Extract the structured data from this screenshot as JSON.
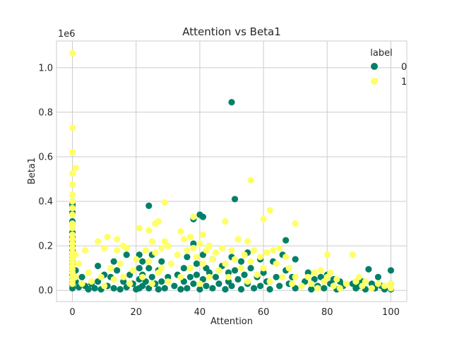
{
  "chart_data": {
    "type": "scatter",
    "title": "Attention vs Beta1",
    "xlabel": "Attention",
    "ylabel": "Beta1",
    "y_offset_text": "1e6",
    "xlim": [
      -5,
      105
    ],
    "ylim": [
      -50000,
      1120000
    ],
    "x_ticks": [
      0,
      20,
      40,
      60,
      80,
      100
    ],
    "x_tick_labels": [
      "0",
      "20",
      "40",
      "60",
      "80",
      "100"
    ],
    "y_ticks": [
      0,
      200000,
      400000,
      600000,
      800000,
      1000000
    ],
    "y_tick_labels": [
      "0.0",
      "0.2",
      "0.4",
      "0.6",
      "0.8",
      "1.0"
    ],
    "grid": true,
    "legend": {
      "title": "label",
      "placement": "top-right"
    },
    "series": [
      {
        "name": "0",
        "color": "#008066",
        "points": [
          [
            0,
            390000
          ],
          [
            0,
            380000
          ],
          [
            0,
            350000
          ],
          [
            0,
            310000
          ],
          [
            0,
            300000
          ],
          [
            0,
            260000
          ],
          [
            0,
            240000
          ],
          [
            0,
            220000
          ],
          [
            0,
            200000
          ],
          [
            0,
            180000
          ],
          [
            0,
            165000
          ],
          [
            0,
            150000
          ],
          [
            0,
            135000
          ],
          [
            0,
            120000
          ],
          [
            0,
            100000
          ],
          [
            0,
            85000
          ],
          [
            0,
            70000
          ],
          [
            0,
            55000
          ],
          [
            0,
            40000
          ],
          [
            0,
            25000
          ],
          [
            0,
            10000
          ],
          [
            1,
            90000
          ],
          [
            1,
            40000
          ],
          [
            2,
            15000
          ],
          [
            3,
            60000
          ],
          [
            4,
            20000
          ],
          [
            5,
            5000
          ],
          [
            6,
            30000
          ],
          [
            7,
            10000
          ],
          [
            8,
            110000
          ],
          [
            8,
            40000
          ],
          [
            9,
            5000
          ],
          [
            10,
            70000
          ],
          [
            11,
            20000
          ],
          [
            12,
            60000
          ],
          [
            13,
            130000
          ],
          [
            13,
            10000
          ],
          [
            14,
            90000
          ],
          [
            15,
            5000
          ],
          [
            16,
            40000
          ],
          [
            17,
            160000
          ],
          [
            17,
            15000
          ],
          [
            18,
            70000
          ],
          [
            19,
            30000
          ],
          [
            20,
            5000
          ],
          [
            21,
            160000
          ],
          [
            21,
            100000
          ],
          [
            21,
            50000
          ],
          [
            21,
            10000
          ],
          [
            22,
            130000
          ],
          [
            22,
            70000
          ],
          [
            22,
            20000
          ],
          [
            23,
            40000
          ],
          [
            24,
            380000
          ],
          [
            24,
            100000
          ],
          [
            24,
            10000
          ],
          [
            25,
            160000
          ],
          [
            25,
            60000
          ],
          [
            26,
            30000
          ],
          [
            27,
            90000
          ],
          [
            27,
            5000
          ],
          [
            28,
            130000
          ],
          [
            28,
            40000
          ],
          [
            29,
            10000
          ],
          [
            30,
            60000
          ],
          [
            32,
            20000
          ],
          [
            33,
            70000
          ],
          [
            34,
            5000
          ],
          [
            35,
            100000
          ],
          [
            35,
            40000
          ],
          [
            36,
            150000
          ],
          [
            36,
            10000
          ],
          [
            37,
            60000
          ],
          [
            38,
            320000
          ],
          [
            38,
            210000
          ],
          [
            38,
            30000
          ],
          [
            39,
            120000
          ],
          [
            39,
            70000
          ],
          [
            40,
            340000
          ],
          [
            40,
            5000
          ],
          [
            41,
            330000
          ],
          [
            41,
            160000
          ],
          [
            41,
            50000
          ],
          [
            42,
            100000
          ],
          [
            42,
            20000
          ],
          [
            43,
            80000
          ],
          [
            44,
            140000
          ],
          [
            44,
            10000
          ],
          [
            45,
            60000
          ],
          [
            46,
            30000
          ],
          [
            47,
            110000
          ],
          [
            48,
            5000
          ],
          [
            49,
            80000
          ],
          [
            49,
            40000
          ],
          [
            50,
            845000
          ],
          [
            50,
            150000
          ],
          [
            50,
            20000
          ],
          [
            51,
            410000
          ],
          [
            51,
            90000
          ],
          [
            52,
            50000
          ],
          [
            53,
            130000
          ],
          [
            53,
            5000
          ],
          [
            54,
            70000
          ],
          [
            55,
            170000
          ],
          [
            55,
            30000
          ],
          [
            56,
            100000
          ],
          [
            57,
            10000
          ],
          [
            58,
            60000
          ],
          [
            59,
            140000
          ],
          [
            59,
            20000
          ],
          [
            60,
            80000
          ],
          [
            61,
            40000
          ],
          [
            62,
            5000
          ],
          [
            63,
            130000
          ],
          [
            64,
            60000
          ],
          [
            65,
            20000
          ],
          [
            66,
            160000
          ],
          [
            67,
            225000
          ],
          [
            67,
            90000
          ],
          [
            68,
            30000
          ],
          [
            69,
            60000
          ],
          [
            70,
            140000
          ],
          [
            70,
            10000
          ],
          [
            73,
            40000
          ],
          [
            74,
            80000
          ],
          [
            75,
            5000
          ],
          [
            76,
            50000
          ],
          [
            77,
            20000
          ],
          [
            78,
            60000
          ],
          [
            79,
            10000
          ],
          [
            80,
            70000
          ],
          [
            81,
            30000
          ],
          [
            82,
            50000
          ],
          [
            83,
            5000
          ],
          [
            84,
            40000
          ],
          [
            85,
            20000
          ],
          [
            88,
            30000
          ],
          [
            89,
            10000
          ],
          [
            90,
            20000
          ],
          [
            91,
            40000
          ],
          [
            92,
            5000
          ],
          [
            93,
            95000
          ],
          [
            94,
            30000
          ],
          [
            95,
            10000
          ],
          [
            96,
            60000
          ],
          [
            97,
            20000
          ],
          [
            98,
            5000
          ],
          [
            100,
            90000
          ],
          [
            100,
            30000
          ],
          [
            100,
            5000
          ]
        ]
      },
      {
        "name": "1",
        "color": "#ffff66",
        "points": [
          [
            0,
            1065000
          ],
          [
            0,
            730000
          ],
          [
            0,
            620000
          ],
          [
            0,
            525000
          ],
          [
            0,
            475000
          ],
          [
            0,
            430000
          ],
          [
            0,
            400000
          ],
          [
            0,
            370000
          ],
          [
            0,
            340000
          ],
          [
            0,
            300000
          ],
          [
            0,
            280000
          ],
          [
            0,
            250000
          ],
          [
            0,
            230000
          ],
          [
            0,
            210000
          ],
          [
            0,
            190000
          ],
          [
            0,
            170000
          ],
          [
            0,
            155000
          ],
          [
            0,
            140000
          ],
          [
            0,
            125000
          ],
          [
            0,
            110000
          ],
          [
            0,
            95000
          ],
          [
            0,
            80000
          ],
          [
            0,
            60000
          ],
          [
            0,
            45000
          ],
          [
            0,
            30000
          ],
          [
            1,
            550000
          ],
          [
            1,
            160000
          ],
          [
            1,
            60000
          ],
          [
            2,
            120000
          ],
          [
            3,
            30000
          ],
          [
            4,
            180000
          ],
          [
            5,
            80000
          ],
          [
            6,
            40000
          ],
          [
            8,
            220000
          ],
          [
            9,
            60000
          ],
          [
            10,
            190000
          ],
          [
            10,
            20000
          ],
          [
            11,
            240000
          ],
          [
            12,
            100000
          ],
          [
            13,
            50000
          ],
          [
            14,
            180000
          ],
          [
            14,
            230000
          ],
          [
            15,
            120000
          ],
          [
            16,
            200000
          ],
          [
            16,
            60000
          ],
          [
            17,
            190000
          ],
          [
            18,
            30000
          ],
          [
            19,
            90000
          ],
          [
            20,
            140000
          ],
          [
            21,
            280000
          ],
          [
            22,
            60000
          ],
          [
            23,
            180000
          ],
          [
            24,
            270000
          ],
          [
            24,
            130000
          ],
          [
            25,
            220000
          ],
          [
            25,
            30000
          ],
          [
            26,
            300000
          ],
          [
            26,
            170000
          ],
          [
            27,
            310000
          ],
          [
            27,
            80000
          ],
          [
            28,
            190000
          ],
          [
            28,
            100000
          ],
          [
            29,
            395000
          ],
          [
            29,
            220000
          ],
          [
            30,
            200000
          ],
          [
            30,
            40000
          ],
          [
            31,
            120000
          ],
          [
            33,
            160000
          ],
          [
            34,
            265000
          ],
          [
            34,
            60000
          ],
          [
            35,
            230000
          ],
          [
            36,
            180000
          ],
          [
            37,
            240000
          ],
          [
            37,
            100000
          ],
          [
            38,
            330000
          ],
          [
            38,
            190000
          ],
          [
            39,
            150000
          ],
          [
            40,
            210000
          ],
          [
            40,
            30000
          ],
          [
            41,
            250000
          ],
          [
            41,
            120000
          ],
          [
            42,
            180000
          ],
          [
            43,
            200000
          ],
          [
            43,
            60000
          ],
          [
            44,
            140000
          ],
          [
            45,
            170000
          ],
          [
            46,
            90000
          ],
          [
            47,
            190000
          ],
          [
            48,
            120000
          ],
          [
            48,
            310000
          ],
          [
            49,
            60000
          ],
          [
            50,
            180000
          ],
          [
            51,
            140000
          ],
          [
            52,
            230000
          ],
          [
            53,
            100000
          ],
          [
            54,
            160000
          ],
          [
            55,
            220000
          ],
          [
            55,
            40000
          ],
          [
            56,
            495000
          ],
          [
            56,
            130000
          ],
          [
            57,
            180000
          ],
          [
            58,
            70000
          ],
          [
            59,
            150000
          ],
          [
            60,
            320000
          ],
          [
            60,
            100000
          ],
          [
            61,
            170000
          ],
          [
            62,
            360000
          ],
          [
            62,
            40000
          ],
          [
            63,
            180000
          ],
          [
            64,
            120000
          ],
          [
            65,
            190000
          ],
          [
            66,
            60000
          ],
          [
            67,
            150000
          ],
          [
            68,
            100000
          ],
          [
            69,
            30000
          ],
          [
            70,
            300000
          ],
          [
            70,
            60000
          ],
          [
            72,
            20000
          ],
          [
            74,
            60000
          ],
          [
            75,
            30000
          ],
          [
            76,
            80000
          ],
          [
            77,
            10000
          ],
          [
            78,
            90000
          ],
          [
            79,
            40000
          ],
          [
            80,
            160000
          ],
          [
            80,
            60000
          ],
          [
            81,
            80000
          ],
          [
            82,
            20000
          ],
          [
            83,
            50000
          ],
          [
            84,
            10000
          ],
          [
            86,
            30000
          ],
          [
            88,
            160000
          ],
          [
            89,
            40000
          ],
          [
            90,
            60000
          ],
          [
            91,
            20000
          ],
          [
            92,
            40000
          ],
          [
            94,
            10000
          ],
          [
            96,
            30000
          ],
          [
            98,
            20000
          ],
          [
            100,
            30000
          ],
          [
            100,
            10000
          ]
        ]
      }
    ]
  }
}
